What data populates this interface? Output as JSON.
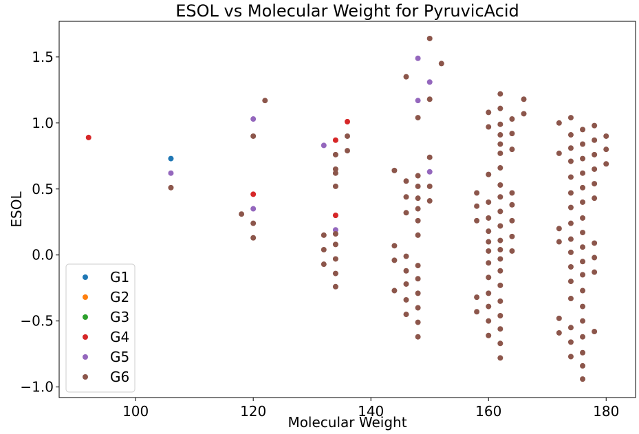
{
  "chart_data": {
    "type": "scatter",
    "title": "ESOL vs Molecular Weight for PyruvicAcid",
    "xlabel": "Molecular Weight",
    "ylabel": "ESOL",
    "xlim": [
      87,
      185
    ],
    "ylim": [
      -1.08,
      1.77
    ],
    "xticks": [
      100,
      120,
      140,
      160,
      180
    ],
    "xtick_labels": [
      "100",
      "120",
      "140",
      "160",
      "180"
    ],
    "yticks": [
      -1.0,
      -0.5,
      0.0,
      0.5,
      1.0,
      1.5
    ],
    "ytick_labels": [
      "−1.0",
      "−0.5",
      "0.0",
      "0.5",
      "1.0",
      "1.5"
    ],
    "grid": false,
    "legend_position": "bottom-left",
    "series": [
      {
        "name": "G1",
        "color": "#1f77b4",
        "points": [
          [
            106,
            0.73
          ]
        ]
      },
      {
        "name": "G2",
        "color": "#ff7f0e",
        "points": []
      },
      {
        "name": "G3",
        "color": "#2ca02c",
        "points": []
      },
      {
        "name": "G4",
        "color": "#d62728",
        "points": [
          [
            92,
            0.89
          ],
          [
            120,
            0.46
          ],
          [
            134,
            0.87
          ],
          [
            134,
            0.3
          ],
          [
            136,
            1.01
          ]
        ]
      },
      {
        "name": "G5",
        "color": "#9467bd",
        "points": [
          [
            106,
            0.62
          ],
          [
            120,
            1.03
          ],
          [
            120,
            0.35
          ],
          [
            132,
            0.83
          ],
          [
            134,
            0.19
          ],
          [
            148,
            1.49
          ],
          [
            148,
            1.17
          ],
          [
            150,
            1.31
          ],
          [
            150,
            0.63
          ]
        ]
      },
      {
        "name": "G6",
        "color": "#8c564b",
        "points": [
          [
            106,
            0.51
          ],
          [
            118,
            0.31
          ],
          [
            120,
            0.9
          ],
          [
            120,
            0.24
          ],
          [
            120,
            0.13
          ],
          [
            122,
            1.17
          ],
          [
            132,
            0.15
          ],
          [
            132,
            0.04
          ],
          [
            132,
            -0.07
          ],
          [
            134,
            0.76
          ],
          [
            134,
            0.65
          ],
          [
            134,
            0.62
          ],
          [
            134,
            0.52
          ],
          [
            134,
            0.16
          ],
          [
            134,
            0.08
          ],
          [
            134,
            -0.03
          ],
          [
            134,
            -0.14
          ],
          [
            134,
            -0.24
          ],
          [
            136,
            0.9
          ],
          [
            136,
            0.79
          ],
          [
            144,
            0.64
          ],
          [
            144,
            0.07
          ],
          [
            144,
            -0.04
          ],
          [
            144,
            -0.27
          ],
          [
            146,
            1.35
          ],
          [
            146,
            0.56
          ],
          [
            146,
            0.44
          ],
          [
            146,
            0.32
          ],
          [
            146,
            -0.01
          ],
          [
            146,
            -0.12
          ],
          [
            146,
            -0.22
          ],
          [
            146,
            -0.34
          ],
          [
            146,
            -0.45
          ],
          [
            148,
            1.04
          ],
          [
            148,
            0.6
          ],
          [
            148,
            0.52
          ],
          [
            148,
            0.43
          ],
          [
            148,
            0.35
          ],
          [
            148,
            0.26
          ],
          [
            148,
            0.15
          ],
          [
            148,
            -0.08
          ],
          [
            148,
            -0.18
          ],
          [
            148,
            -0.29
          ],
          [
            148,
            -0.4
          ],
          [
            148,
            -0.51
          ],
          [
            148,
            -0.62
          ],
          [
            150,
            1.64
          ],
          [
            150,
            1.18
          ],
          [
            150,
            0.74
          ],
          [
            150,
            0.52
          ],
          [
            150,
            0.41
          ],
          [
            152,
            1.45
          ],
          [
            158,
            0.47
          ],
          [
            158,
            0.37
          ],
          [
            158,
            0.26
          ],
          [
            158,
            -0.32
          ],
          [
            158,
            -0.43
          ],
          [
            160,
            1.08
          ],
          [
            160,
            0.97
          ],
          [
            160,
            0.61
          ],
          [
            160,
            0.4
          ],
          [
            160,
            0.28
          ],
          [
            160,
            0.18
          ],
          [
            160,
            0.1
          ],
          [
            160,
            0.03
          ],
          [
            160,
            -0.06
          ],
          [
            160,
            -0.17
          ],
          [
            160,
            -0.29
          ],
          [
            160,
            -0.39
          ],
          [
            160,
            -0.5
          ],
          [
            160,
            -0.61
          ],
          [
            162,
            1.22
          ],
          [
            162,
            1.11
          ],
          [
            162,
            0.99
          ],
          [
            162,
            0.91
          ],
          [
            162,
            0.84
          ],
          [
            162,
            0.77
          ],
          [
            162,
            0.66
          ],
          [
            162,
            0.53
          ],
          [
            162,
            0.44
          ],
          [
            162,
            0.33
          ],
          [
            162,
            0.22
          ],
          [
            162,
            0.11
          ],
          [
            162,
            0.04
          ],
          [
            162,
            -0.03
          ],
          [
            162,
            -0.12
          ],
          [
            162,
            -0.23
          ],
          [
            162,
            -0.35
          ],
          [
            162,
            -0.46
          ],
          [
            162,
            -0.56
          ],
          [
            162,
            -0.67
          ],
          [
            162,
            -0.78
          ],
          [
            164,
            1.03
          ],
          [
            164,
            0.92
          ],
          [
            164,
            0.8
          ],
          [
            164,
            0.47
          ],
          [
            164,
            0.38
          ],
          [
            164,
            0.26
          ],
          [
            164,
            0.14
          ],
          [
            164,
            0.03
          ],
          [
            166,
            1.18
          ],
          [
            166,
            1.07
          ],
          [
            172,
            1.0
          ],
          [
            172,
            0.77
          ],
          [
            172,
            0.2
          ],
          [
            172,
            0.1
          ],
          [
            172,
            -0.48
          ],
          [
            172,
            -0.59
          ],
          [
            174,
            1.04
          ],
          [
            174,
            0.91
          ],
          [
            174,
            0.81
          ],
          [
            174,
            0.71
          ],
          [
            174,
            0.59
          ],
          [
            174,
            0.47
          ],
          [
            174,
            0.36
          ],
          [
            174,
            0.24
          ],
          [
            174,
            0.12
          ],
          [
            174,
            0.02
          ],
          [
            174,
            -0.09
          ],
          [
            174,
            -0.2
          ],
          [
            174,
            -0.33
          ],
          [
            174,
            -0.55
          ],
          [
            174,
            -0.66
          ],
          [
            174,
            -0.77
          ],
          [
            176,
            0.95
          ],
          [
            176,
            0.84
          ],
          [
            176,
            0.73
          ],
          [
            176,
            0.62
          ],
          [
            176,
            0.51
          ],
          [
            176,
            0.4
          ],
          [
            176,
            0.28
          ],
          [
            176,
            0.17
          ],
          [
            176,
            0.06
          ],
          [
            176,
            -0.05
          ],
          [
            176,
            -0.15
          ],
          [
            176,
            -0.27
          ],
          [
            176,
            -0.39
          ],
          [
            176,
            -0.5
          ],
          [
            176,
            -0.62
          ],
          [
            176,
            -0.74
          ],
          [
            176,
            -0.84
          ],
          [
            176,
            -0.94
          ],
          [
            178,
            0.98
          ],
          [
            178,
            0.87
          ],
          [
            178,
            0.76
          ],
          [
            178,
            0.65
          ],
          [
            178,
            0.54
          ],
          [
            178,
            0.43
          ],
          [
            178,
            0.09
          ],
          [
            178,
            -0.02
          ],
          [
            178,
            -0.13
          ],
          [
            178,
            -0.58
          ],
          [
            180,
            0.9
          ],
          [
            180,
            0.8
          ],
          [
            180,
            0.69
          ]
        ]
      }
    ]
  }
}
